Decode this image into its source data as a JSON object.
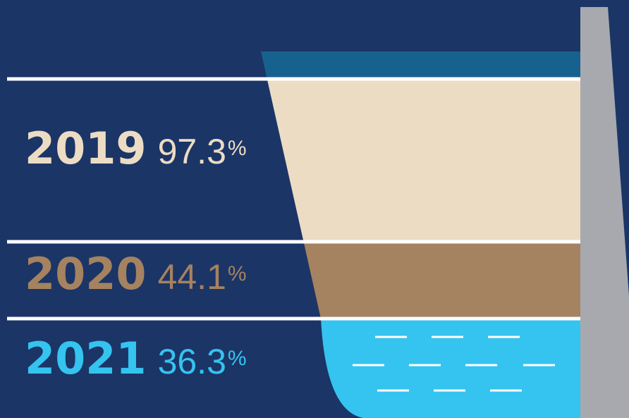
{
  "rows": [
    {
      "year": "2019",
      "value": "97.3",
      "unit": "%"
    },
    {
      "year": "2020",
      "value": "44.1",
      "unit": "%"
    },
    {
      "year": "2021",
      "value": "36.3",
      "unit": "%"
    }
  ]
}
